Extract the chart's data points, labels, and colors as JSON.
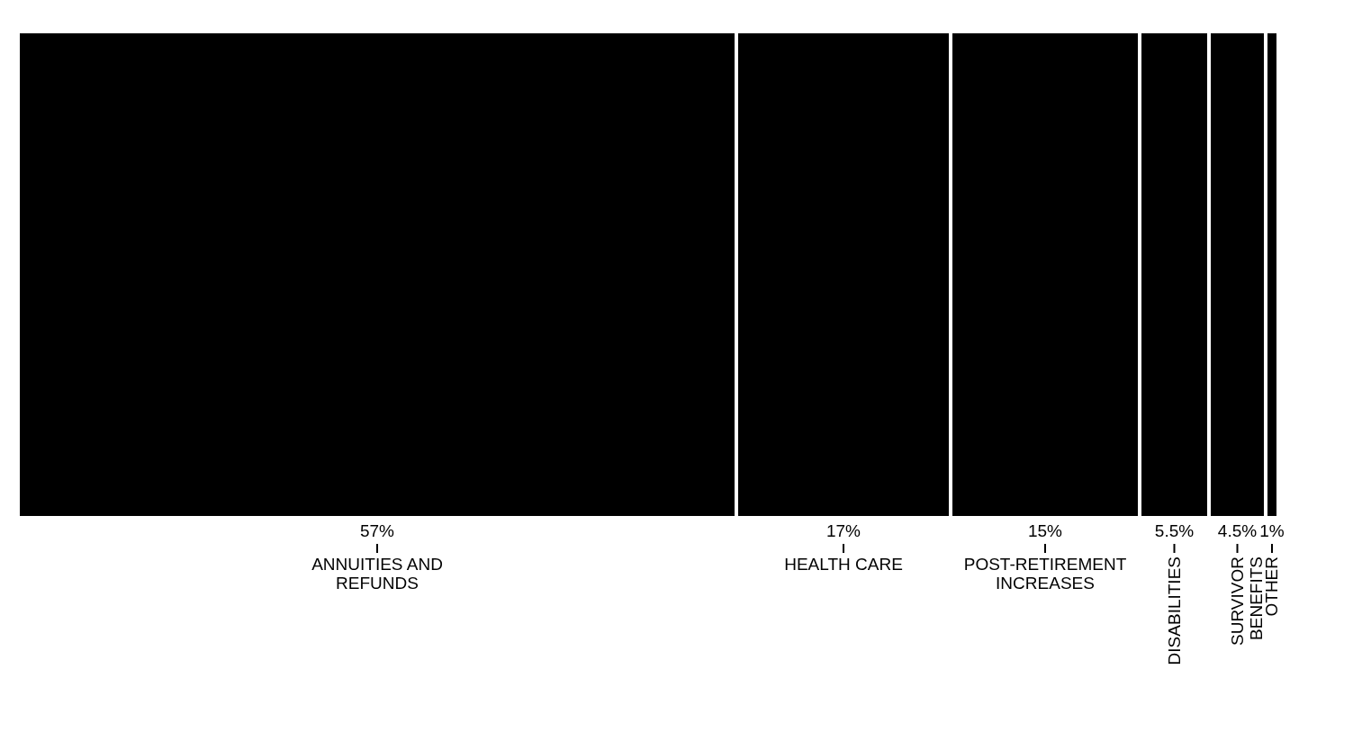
{
  "chart_data": {
    "type": "bar",
    "orientation": "horizontal",
    "stacked": true,
    "categories": [
      null
    ],
    "xlim": [
      0,
      100
    ],
    "tick_labels": false,
    "series": [
      {
        "name": "ANNUITIES AND REFUNDS",
        "color": "#000000",
        "values": [
          57
        ],
        "value_labels": [
          "57%"
        ]
      },
      {
        "name": "HEALTH CARE",
        "color": "#000000",
        "values": [
          17
        ],
        "value_labels": [
          "17%"
        ]
      },
      {
        "name": "POST-RETIREMENT INCREASES",
        "color": "#000000",
        "values": [
          15
        ],
        "value_labels": [
          "15%"
        ]
      },
      {
        "name": "DISABILITIES",
        "color": "#000000",
        "values": [
          5.5
        ],
        "value_labels": [
          "5.5%"
        ]
      },
      {
        "name": "SURVIVOR BENEFITS",
        "color": "#000000",
        "values": [
          4.5
        ],
        "value_labels": [
          "4.5%"
        ]
      },
      {
        "name": "OTHER",
        "color": "#000000",
        "values": [
          1
        ],
        "value_labels": [
          "1%"
        ]
      }
    ]
  }
}
